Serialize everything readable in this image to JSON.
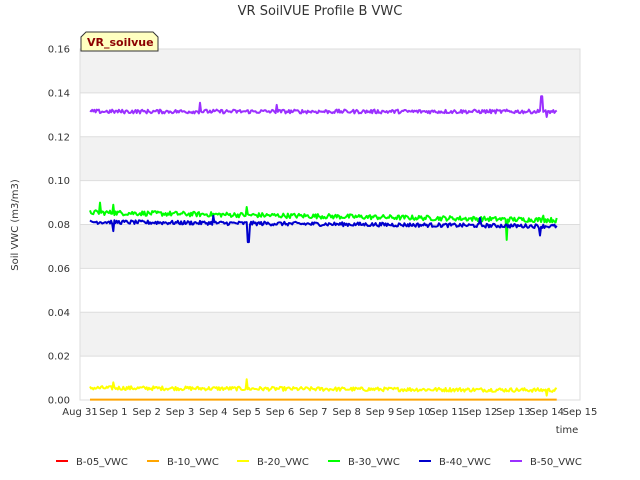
{
  "chart_data": {
    "type": "line",
    "title": "VR SoilVUE Profile B VWC",
    "tag": "VR_soilvue",
    "xlabel": "time",
    "ylabel": "Soil VWC (m3/m3)",
    "ylim": [
      0,
      0.16
    ],
    "yticks": [
      "0.00",
      "0.02",
      "0.04",
      "0.06",
      "0.08",
      "0.10",
      "0.12",
      "0.14",
      "0.16"
    ],
    "xlim": [
      0,
      15
    ],
    "xticks": [
      "Aug 31",
      "Sep 1",
      "Sep 2",
      "Sep 3",
      "Sep 4",
      "Sep 5",
      "Sep 6",
      "Sep 7",
      "Sep 8",
      "Sep 9",
      "Sep 10",
      "Sep 11",
      "Sep 12",
      "Sep 13",
      "Sep 14",
      "Sep 15"
    ],
    "x_start": 0.3,
    "x_end": 14.3,
    "series": [
      {
        "name": "B-05_VWC",
        "color": "#ff0000",
        "values": [],
        "note": "no data"
      },
      {
        "name": "B-10_VWC",
        "color": "#ffa500",
        "level": 0.0,
        "noise": 0.0,
        "drift": 0.0,
        "spikes": []
      },
      {
        "name": "B-20_VWC",
        "color": "#ffff00",
        "level": 0.0055,
        "noise": 0.0009,
        "drift": -0.001,
        "spikes": [
          [
            1.0,
            0.008
          ],
          [
            5.0,
            0.0095
          ],
          [
            14.0,
            0.002
          ]
        ]
      },
      {
        "name": "B-30_VWC",
        "color": "#00ff00",
        "level": 0.0855,
        "noise": 0.0011,
        "drift": -0.0035,
        "spikes": [
          [
            0.6,
            0.09
          ],
          [
            1.0,
            0.089
          ],
          [
            5.0,
            0.088
          ],
          [
            12.8,
            0.073
          ],
          [
            13.9,
            0.084
          ]
        ]
      },
      {
        "name": "B-40_VWC",
        "color": "#0000cc",
        "level": 0.0812,
        "noise": 0.0009,
        "drift": -0.002,
        "spikes": [
          [
            1.0,
            0.077
          ],
          [
            4.0,
            0.084
          ],
          [
            5.05,
            0.072
          ],
          [
            12.0,
            0.083
          ],
          [
            13.8,
            0.075
          ]
        ]
      },
      {
        "name": "B-50_VWC",
        "color": "#9b30ff",
        "level": 0.1315,
        "noise": 0.0009,
        "drift": 0.0,
        "spikes": [
          [
            3.6,
            0.1355
          ],
          [
            5.9,
            0.1345
          ],
          [
            13.85,
            0.1385
          ],
          [
            14.0,
            0.129
          ]
        ]
      }
    ]
  }
}
